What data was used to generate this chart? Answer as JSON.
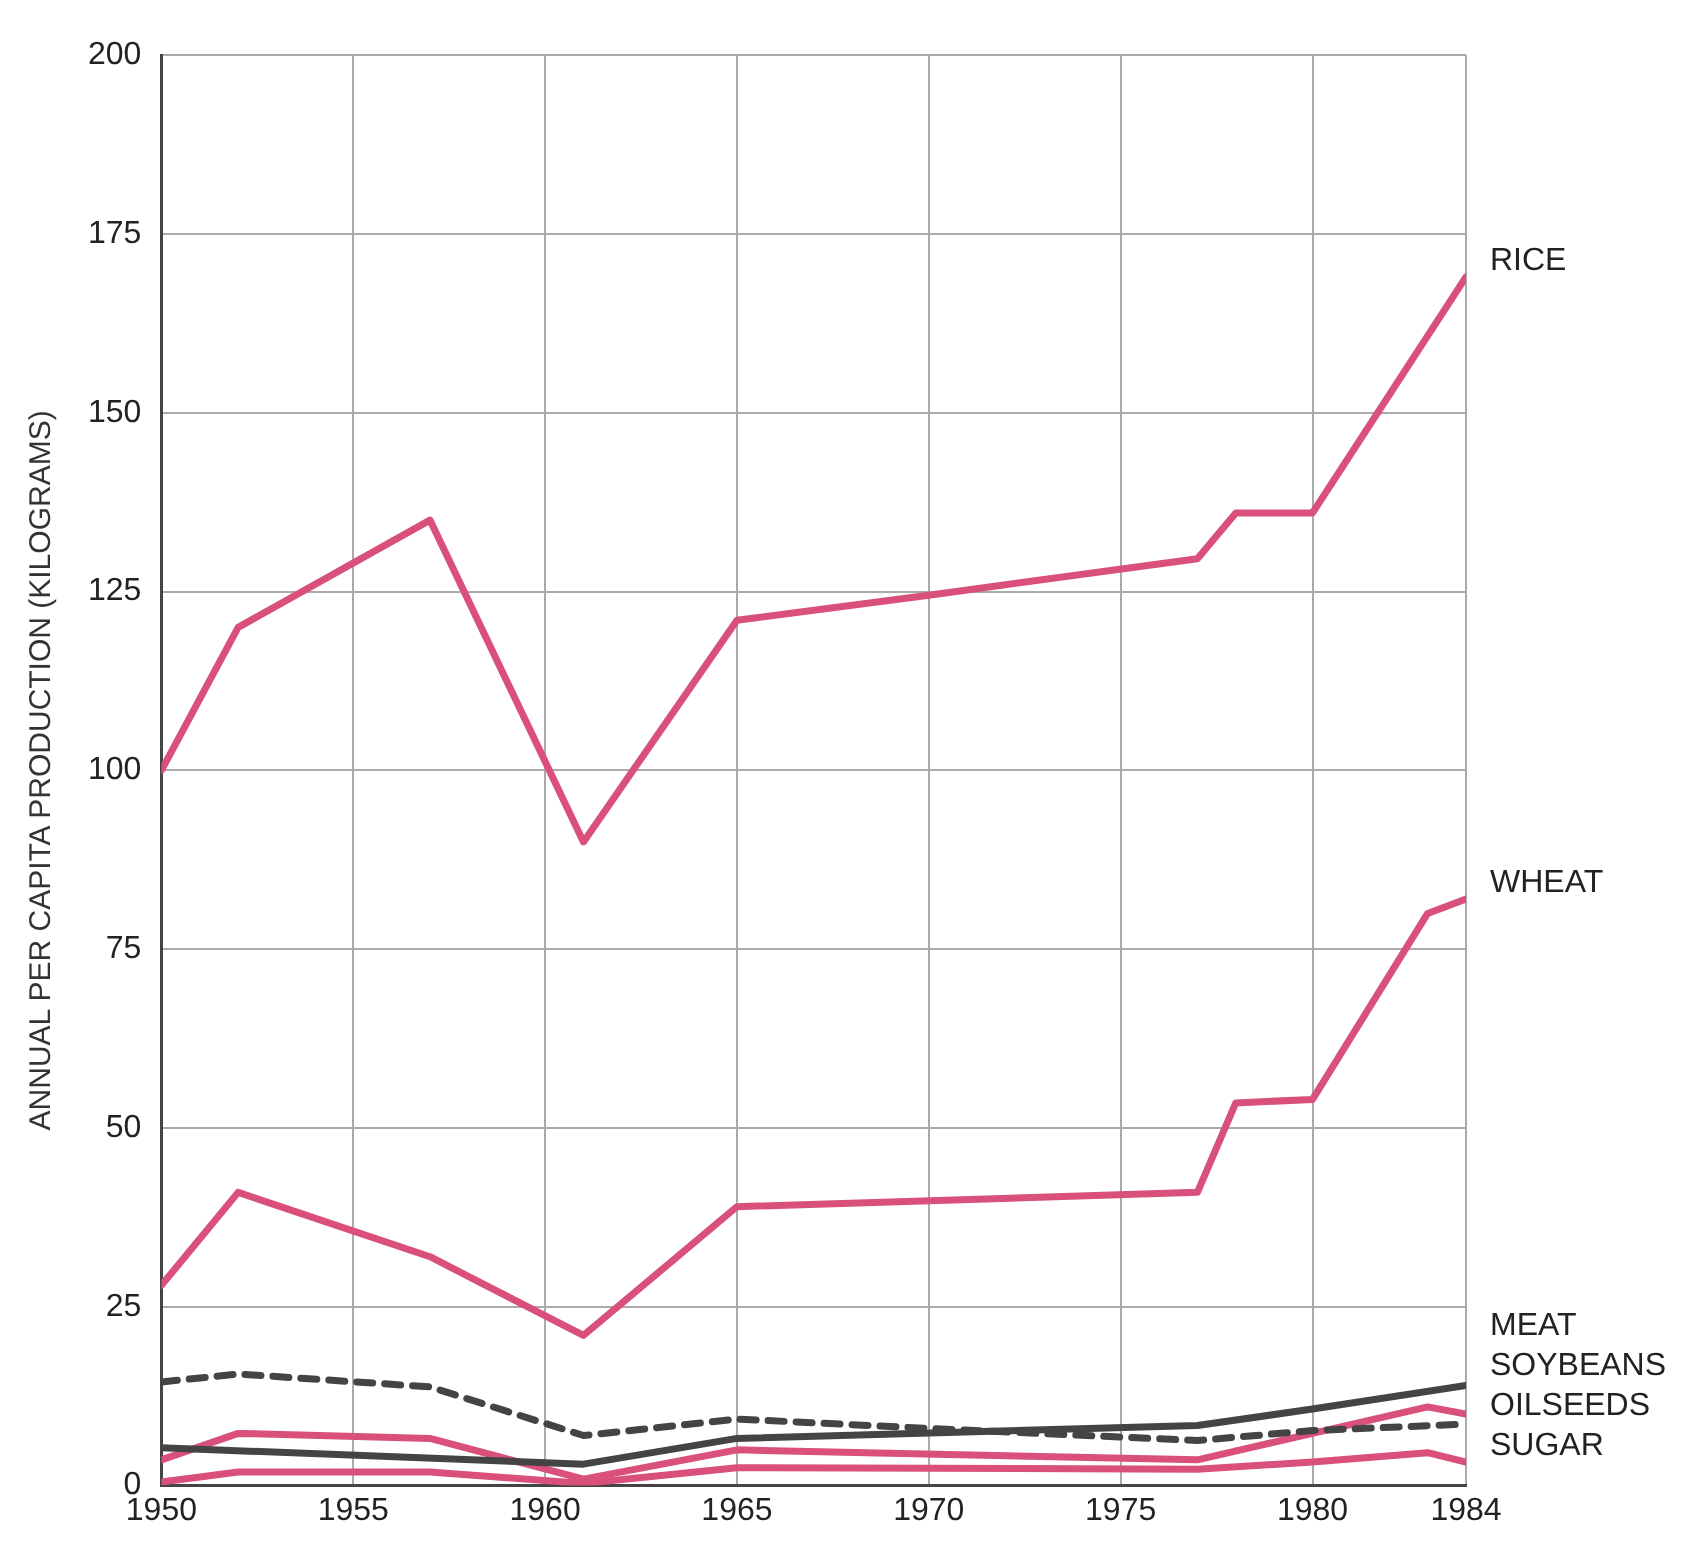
{
  "chart_data": {
    "type": "line",
    "ylabel": "ANNUAL PER CAPITA PRODUCTION (KILOGRAMS)",
    "xlim": [
      1950,
      1984
    ],
    "xticks": [
      1950,
      1955,
      1960,
      1965,
      1970,
      1975,
      1980,
      1984
    ],
    "ylim": [
      0,
      200
    ],
    "yticks": [
      0,
      25,
      50,
      75,
      100,
      125,
      150,
      175,
      200
    ],
    "grid": true,
    "legend": false,
    "marker": "none",
    "series": [
      {
        "name": "RICE",
        "color": "#d9507a",
        "line_style": "solid",
        "x": [
          1950,
          1952,
          1957,
          1961,
          1965,
          1970,
          1977,
          1978,
          1980,
          1984
        ],
        "values": [
          100,
          120,
          135,
          90,
          121,
          124.5,
          129.6,
          136,
          136,
          169
        ]
      },
      {
        "name": "WHEAT",
        "color": "#d9507a",
        "line_style": "solid",
        "x": [
          1950,
          1952,
          1957,
          1961,
          1965,
          1977,
          1978,
          1980,
          1983,
          1984
        ],
        "values": [
          28,
          41,
          32,
          21,
          39,
          41,
          53.5,
          54,
          80,
          82
        ]
      },
      {
        "name": "MEAT",
        "color": "#444444",
        "line_style": "solid",
        "x": [
          1950,
          1961,
          1965,
          1977,
          1980,
          1984
        ],
        "values": [
          5.3,
          3,
          6.6,
          8.4,
          10.7,
          14
        ]
      },
      {
        "name": "OILSEEDS",
        "color": "#444444",
        "line_style": "dashed",
        "x": [
          1950,
          1952,
          1957,
          1961,
          1965,
          1970,
          1977,
          1980,
          1984
        ],
        "values": [
          14.5,
          15.6,
          13.8,
          7,
          9.3,
          8,
          6.3,
          7.7,
          8.6
        ]
      },
      {
        "name": "SOYBEANS",
        "color": "#d9507a",
        "line_style": "solid",
        "x": [
          1950,
          1952,
          1957,
          1961,
          1965,
          1977,
          1980,
          1983,
          1984
        ],
        "values": [
          3.6,
          7.3,
          6.6,
          0.9,
          5,
          3.6,
          7.3,
          11,
          10
        ]
      },
      {
        "name": "SUGAR",
        "color": "#d9507a",
        "line_style": "solid",
        "x": [
          1950,
          1952,
          1957,
          1961,
          1965,
          1977,
          1980,
          1983,
          1984
        ],
        "values": [
          0.5,
          1.9,
          1.9,
          0.3,
          2.5,
          2.3,
          3.3,
          4.6,
          3.3
        ]
      }
    ]
  }
}
